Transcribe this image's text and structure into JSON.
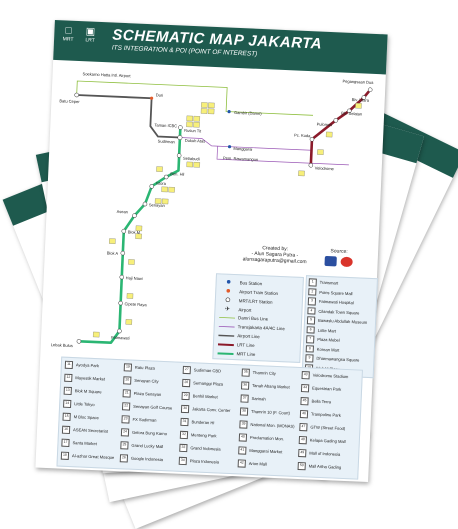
{
  "header": {
    "icons": [
      {
        "label": "MRT",
        "icon": "bus-icon"
      },
      {
        "label": "LRT",
        "icon": "train-icon"
      }
    ],
    "title": "SCHEMATIC MAP JAKARTA",
    "subtitle": "ITS INTEGRATION & POI (POINT OF INTEREST)"
  },
  "colors": {
    "header": "#1e5a4e",
    "mrt": "#2bb673",
    "lrt": "#8b1a2a",
    "airport": "#555555",
    "damri": "#8fbf3f",
    "transjakarta": "#9b59b6",
    "poi_box": "#f7ef7a"
  },
  "stations": {
    "soekarno": "Soekarno Hatta Intl. Airport",
    "batu_ceper": "Batu Ceper",
    "duri": "Duri",
    "gambir": "Gambir (Damri)",
    "rusun": "Rusun Tit",
    "taman": "Taman ICBC",
    "sudirman": "Sudirman",
    "dukuh_atas": "Dukuh Atas",
    "manggarai": "Manggarai",
    "pem_rawamangun": "Pem. Rawamangun",
    "setiabudi": "Setiabudi",
    "ben_hil": "Ben. Hil",
    "istora": "Istora",
    "senayan": "Senayan",
    "asean": "Asean",
    "blok_m": "Blok M",
    "blok_a": "Blok A",
    "haji_nawi": "Haji Nawi",
    "cipete_raya": "Cipete Raya",
    "fatmawati": "Fatmawati",
    "lebak_bulus": "Lebak Bulus",
    "pegangsaan_dua": "Pegangsaan Dua",
    "blv_utara": "Blv. Utara",
    "blv_selatan": "Blv. Selatan",
    "pulomas": "Pulomas",
    "pc_kuda": "Pc. Kuda",
    "velodrome": "Velodrome"
  },
  "credit": {
    "created_by": "Created by:",
    "author": "- Alun Sagara Putra -",
    "email": "alunsagaraputra@gmail.com",
    "source": "Source:"
  },
  "legend": [
    {
      "label": "Bus Station",
      "icon": "bus-dot"
    },
    {
      "label": "Airport Train Station",
      "icon": "airport-dot"
    },
    {
      "label": "MRT/LRT Station",
      "icon": "station-circle"
    },
    {
      "label": "Airport",
      "icon": "airplane-icon"
    },
    {
      "label": "Damri Bus Line",
      "icon": "line-damri"
    },
    {
      "label": "Transjakarta 4A/4C Line",
      "icon": "line-transjakarta"
    },
    {
      "label": "Airport Line",
      "icon": "line-airport"
    },
    {
      "label": "LRT Line",
      "icon": "line-lrt"
    },
    {
      "label": "MRT Line",
      "icon": "line-mrt"
    }
  ],
  "poi_right": [
    {
      "n": "1",
      "name": "Transmart"
    },
    {
      "n": "2",
      "name": "Poins Square Mall"
    },
    {
      "n": "3",
      "name": "Fatmawati Hospital"
    },
    {
      "n": "4",
      "name": "Cilandak Town Square"
    },
    {
      "n": "5",
      "name": "Bawaslu Abdullah Museum"
    },
    {
      "n": "6",
      "name": "Lotte Mart"
    },
    {
      "n": "7",
      "name": "Plaza Mebel"
    },
    {
      "n": "8",
      "name": "Korean Mart"
    },
    {
      "n": "9",
      "name": "Dharmawangsa Square"
    },
    {
      "n": "10",
      "name": "Blok M Plaza"
    }
  ],
  "poi_bottom": [
    [
      {
        "n": "11",
        "name": "Ayodya Park"
      },
      {
        "n": "12",
        "name": "Mayestik Market"
      },
      {
        "n": "13",
        "name": "Blok M Square"
      },
      {
        "n": "14",
        "name": "Little Tokyo"
      },
      {
        "n": "15",
        "name": "M Bloc Space"
      },
      {
        "n": "16",
        "name": "ASEAN Secretariat"
      },
      {
        "n": "17",
        "name": "Santa Market"
      },
      {
        "n": "18",
        "name": "Al-azhar Great Mosque"
      }
    ],
    [
      {
        "n": "19",
        "name": "Ratu Plaza"
      },
      {
        "n": "20",
        "name": "Senayan City"
      },
      {
        "n": "21",
        "name": "Plaza Senayan"
      },
      {
        "n": "22",
        "name": "Senayan Golf Course"
      },
      {
        "n": "23",
        "name": "FX Sudirman"
      },
      {
        "n": "24",
        "name": "Gelora Bung Karno"
      },
      {
        "n": "25",
        "name": "Grand Lucky Mall"
      },
      {
        "n": "26",
        "name": "Google Indonesia"
      }
    ],
    [
      {
        "n": "27",
        "name": "Sudirman CBD"
      },
      {
        "n": "28",
        "name": "Semanggi Plaza"
      },
      {
        "n": "29",
        "name": "Benhil Market"
      },
      {
        "n": "30",
        "name": "Jakarta Conv. Center"
      },
      {
        "n": "31",
        "name": "Bunderan HI"
      },
      {
        "n": "32",
        "name": "Menteng Park"
      },
      {
        "n": "33",
        "name": "Grand Indonesia"
      },
      {
        "n": "34",
        "name": "Plaza Indonesia"
      }
    ],
    [
      {
        "n": "35",
        "name": "Thamrin City"
      },
      {
        "n": "36",
        "name": "Tanah Abang Market"
      },
      {
        "n": "37",
        "name": "Sarinah"
      },
      {
        "n": "38",
        "name": "Thamrin 10 (F. Court)"
      },
      {
        "n": "39",
        "name": "National Mon. (MONAS)"
      },
      {
        "n": "40",
        "name": "Proclamation Mon."
      },
      {
        "n": "41",
        "name": "Manggarai Market"
      },
      {
        "n": "42",
        "name": "Arion Mall"
      }
    ],
    [
      {
        "n": "43",
        "name": "Velodrome Stadium"
      },
      {
        "n": "44",
        "name": "Equestrian Park"
      },
      {
        "n": "45",
        "name": "Bella Terra"
      },
      {
        "n": "46",
        "name": "Trampoline Park"
      },
      {
        "n": "47",
        "name": "GTW (Street Food)"
      },
      {
        "n": "48",
        "name": "Kelapa Gading Mall"
      },
      {
        "n": "49",
        "name": "Mall of Indonesia"
      },
      {
        "n": "50",
        "name": "Mall Artha Gading"
      }
    ]
  ]
}
